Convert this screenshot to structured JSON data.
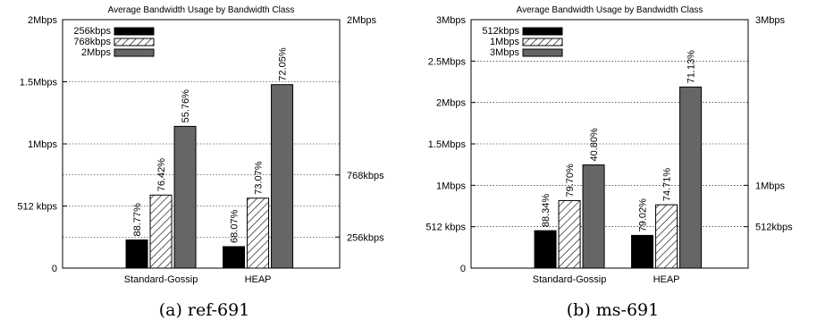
{
  "chart_data": [
    {
      "type": "bar",
      "title": "Average Bandwidth Usage by Bandwidth Class",
      "caption": "(a) ref-691",
      "categories": [
        "Standard-Gossip",
        "HEAP"
      ],
      "ylim": [
        0,
        2
      ],
      "unit": "Mbps",
      "left_ticks": [
        {
          "value": 0,
          "label": "0"
        },
        {
          "value": 0.5,
          "label": "512 kbps"
        },
        {
          "value": 1.0,
          "label": "1Mbps"
        },
        {
          "value": 1.5,
          "label": "1.5Mbps"
        },
        {
          "value": 2.0,
          "label": "2Mbps"
        }
      ],
      "right_ticks": [
        {
          "value": 0.25,
          "label": "256kbps"
        },
        {
          "value": 0.75,
          "label": "768kbps"
        },
        {
          "value": 2.0,
          "label": "2Mbps"
        }
      ],
      "gridlines": [
        0.25,
        0.5,
        0.75,
        1.0,
        1.5
      ],
      "legend_position": "top-left",
      "series": [
        {
          "name": "256kbps",
          "values": [
            0.227,
            0.173
          ],
          "labels": [
            "88.77%",
            "68.07%"
          ],
          "pattern": "solid-black"
        },
        {
          "name": "768kbps",
          "values": [
            0.588,
            0.563
          ],
          "labels": [
            "76.42%",
            "73.07%"
          ],
          "pattern": "hatch"
        },
        {
          "name": "2Mbps",
          "values": [
            1.141,
            1.477
          ],
          "labels": [
            "55.76%",
            "72.05%"
          ],
          "pattern": "solid-gray"
        }
      ]
    },
    {
      "type": "bar",
      "title": "Average Bandwidth Usage by Bandwidth Class",
      "caption": "(b) ms-691",
      "categories": [
        "Standard-Gossip",
        "HEAP"
      ],
      "ylim": [
        0,
        3
      ],
      "unit": "Mbps",
      "left_ticks": [
        {
          "value": 0,
          "label": "0"
        },
        {
          "value": 0.5,
          "label": "512 kbps"
        },
        {
          "value": 1.0,
          "label": "1Mbps"
        },
        {
          "value": 1.5,
          "label": "1.5Mbps"
        },
        {
          "value": 2.0,
          "label": "2Mbps"
        },
        {
          "value": 2.5,
          "label": "2.5Mbps"
        },
        {
          "value": 3.0,
          "label": "3Mbps"
        }
      ],
      "right_ticks": [
        {
          "value": 0.5,
          "label": "512kbps"
        },
        {
          "value": 1.0,
          "label": "1Mbps"
        },
        {
          "value": 3.0,
          "label": "3Mbps"
        }
      ],
      "gridlines": [
        0.5,
        1.0,
        1.5,
        2.0,
        2.5
      ],
      "legend_position": "top-left",
      "series": [
        {
          "name": "512kbps",
          "values": [
            0.452,
            0.395
          ],
          "labels": [
            "88.34%",
            "79.02%"
          ],
          "pattern": "solid-black"
        },
        {
          "name": "1Mbps",
          "values": [
            0.815,
            0.765
          ],
          "labels": [
            "79.70%",
            "74.71%"
          ],
          "pattern": "hatch"
        },
        {
          "name": "3Mbps",
          "values": [
            1.246,
            2.187
          ],
          "labels": [
            "40.80%",
            "71.13%"
          ],
          "pattern": "solid-gray"
        }
      ]
    }
  ]
}
